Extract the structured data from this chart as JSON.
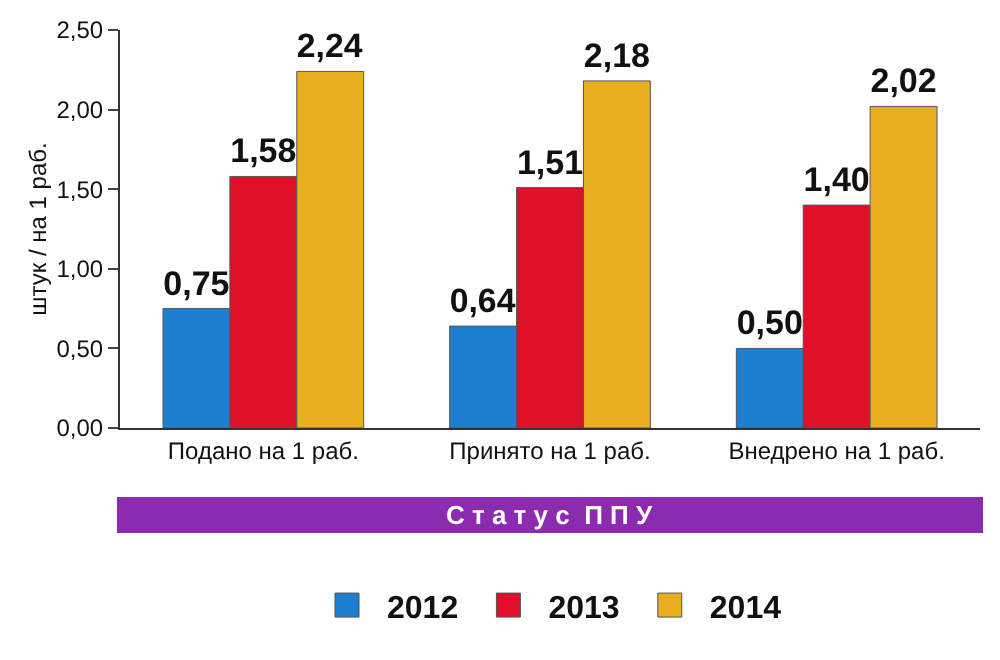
{
  "chart_data": {
    "type": "bar",
    "ylabel": "штук / на 1 раб.",
    "xlabel": "С т а т у с  П П У",
    "categories": [
      "Подано на 1 раб.",
      "Принято на 1 раб.",
      "Внедрено на 1 раб."
    ],
    "series": [
      {
        "name": "2012",
        "color": "#1e7fd0",
        "values": [
          0.75,
          0.64,
          0.5
        ],
        "value_labels": [
          "0,75",
          "0,64",
          "0,50"
        ]
      },
      {
        "name": "2013",
        "color": "#e0102a",
        "values": [
          1.58,
          1.51,
          1.4
        ],
        "value_labels": [
          "1,58",
          "1,51",
          "1,40"
        ]
      },
      {
        "name": "2014",
        "color": "#e8b020",
        "values": [
          2.24,
          2.18,
          2.02
        ],
        "value_labels": [
          "2,24",
          "2,18",
          "2,02"
        ]
      }
    ],
    "ylim": [
      0,
      2.5
    ],
    "yticks": [
      {
        "value": 0,
        "label": "0,00"
      },
      {
        "value": 0.5,
        "label": "0,50"
      },
      {
        "value": 1,
        "label": "1,00"
      },
      {
        "value": 1.5,
        "label": "1,50"
      },
      {
        "value": 2,
        "label": "2,00"
      },
      {
        "value": 2.5,
        "label": "2,50"
      }
    ],
    "grid": false,
    "legend": "bottom"
  }
}
